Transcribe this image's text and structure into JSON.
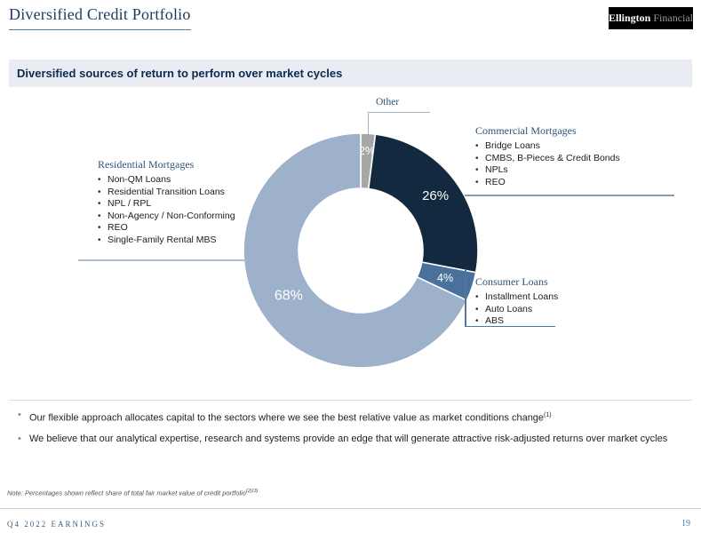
{
  "slide": {
    "title": "Diversified Credit Portfolio",
    "logo": {
      "bold": "Ellington",
      "light": " Financial"
    },
    "section_header": "Diversified sources of return to perform over market cycles",
    "note": {
      "text": "Note: Percentages shown reflect share of total fair market value of credit portfolio",
      "sup": "(2)(3)"
    },
    "footer": {
      "left": "Q4 2022 EARNINGS",
      "page": "19"
    }
  },
  "chart_data": {
    "type": "pie",
    "subtype": "donut",
    "title": "Credit portfolio share of total fair market value",
    "start_angle_deg": 0,
    "direction": "clockwise",
    "donut_hole_ratio": 0.53,
    "value_label_format": "percent",
    "slices": [
      {
        "label": "Other",
        "value": 2,
        "color": "#a7a7a7"
      },
      {
        "label": "Commercial Mortgages",
        "value": 26,
        "color": "#12293f"
      },
      {
        "label": "Consumer Loans",
        "value": 4,
        "color": "#4a719c"
      },
      {
        "label": "Residential Mortgages",
        "value": 68,
        "color": "#9db1cb"
      }
    ]
  },
  "callouts": {
    "other": {
      "title": "Other"
    },
    "residential": {
      "title": "Residential Mortgages",
      "items": [
        "Non-QM Loans",
        "Residential Transition Loans",
        "NPL / RPL",
        "Non-Agency / Non-Conforming",
        "REO",
        "Single-Family Rental MBS"
      ]
    },
    "commercial": {
      "title": "Commercial Mortgages",
      "items": [
        "Bridge Loans",
        "CMBS, B-Pieces & Credit Bonds",
        "NPLs",
        "REO"
      ]
    },
    "consumer": {
      "title": "Consumer Loans",
      "items": [
        "Installment Loans",
        "Auto Loans",
        "ABS"
      ]
    }
  },
  "takeaways": [
    {
      "text": "Our flexible approach allocates capital to the sectors where we see the best relative value as market conditions change",
      "sup": "(1)"
    },
    {
      "text": "We believe that our analytical expertise, research and systems provide an edge that will generate attractive risk-adjusted returns over market cycles",
      "sup": ""
    }
  ]
}
